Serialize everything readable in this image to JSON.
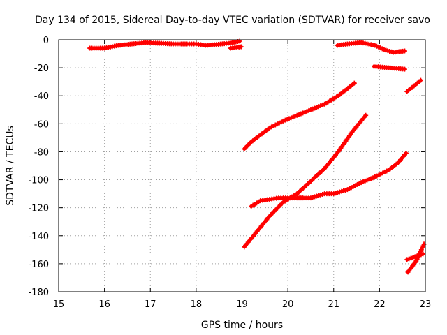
{
  "chart_data": {
    "type": "scatter",
    "title": "Day 134 of 2015, Sidereal Day-to-day VTEC variation (SDTVAR) for receiver savo",
    "xlabel": "GPS time / hours",
    "ylabel": "SDTVAR / TECUs",
    "xlim": [
      15,
      23
    ],
    "ylim": [
      -180,
      0
    ],
    "xticks": [
      15,
      16,
      17,
      18,
      19,
      20,
      21,
      22,
      23
    ],
    "yticks": [
      0,
      -20,
      -40,
      -60,
      -80,
      -100,
      -120,
      -140,
      -160,
      -180
    ],
    "grid": true,
    "legend": false,
    "marker": "plus",
    "color": "#ff0000",
    "series": [
      {
        "x": [
          15.68,
          16.0,
          16.3,
          16.6,
          16.9,
          17.2,
          17.5,
          17.8,
          18.0,
          18.2,
          18.4,
          18.7,
          18.95
        ],
        "y": [
          -6,
          -6,
          -4,
          -3,
          -2,
          -2.5,
          -3,
          -3,
          -3,
          -4,
          -3.5,
          -2.5,
          -1
        ]
      },
      {
        "x": [
          18.75,
          18.98
        ],
        "y": [
          -6,
          -5
        ]
      },
      {
        "x": [
          21.08,
          21.3,
          21.6,
          21.9,
          22.1,
          22.3,
          22.55
        ],
        "y": [
          -4,
          -3,
          -2,
          -4,
          -7,
          -9,
          -8
        ]
      },
      {
        "x": [
          21.88,
          22.2,
          22.55
        ],
        "y": [
          -19,
          -20,
          -21
        ]
      },
      {
        "x": [
          19.05,
          19.2,
          19.4,
          19.6,
          19.9,
          20.2,
          20.5,
          20.8,
          21.1,
          21.45
        ],
        "y": [
          -78,
          -73,
          -68,
          -63,
          -58,
          -54,
          -50,
          -46,
          -40,
          -31
        ]
      },
      {
        "x": [
          19.05,
          19.3,
          19.6,
          19.9,
          20.2,
          20.5,
          20.8,
          21.1,
          21.4,
          21.7
        ],
        "y": [
          -148,
          -138,
          -126,
          -116,
          -110,
          -101,
          -92,
          -80,
          -66,
          -54
        ]
      },
      {
        "x": [
          19.2,
          19.4,
          19.6,
          19.8,
          20.0,
          20.2,
          20.5,
          20.8,
          21.0,
          21.3,
          21.6,
          21.9,
          22.2,
          22.4,
          22.58
        ],
        "y": [
          -119,
          -115,
          -114,
          -113,
          -113,
          -113,
          -113,
          -110,
          -110,
          -107,
          -102,
          -98,
          -93,
          -88,
          -81
        ]
      },
      {
        "x": [
          22.6,
          22.9
        ],
        "y": [
          -37,
          -29
        ]
      },
      {
        "x": [
          22.62,
          22.8,
          22.97
        ],
        "y": [
          -166,
          -158,
          -146
        ]
      },
      {
        "x": [
          22.6,
          22.95
        ],
        "y": [
          -157,
          -153
        ]
      }
    ]
  }
}
